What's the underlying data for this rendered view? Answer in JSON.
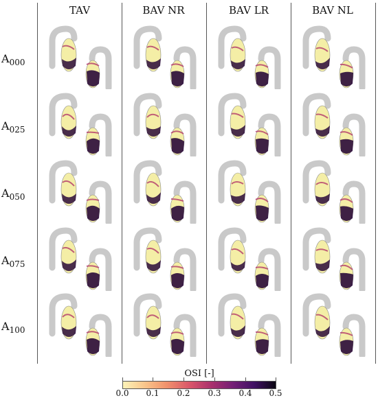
{
  "columns": [
    {
      "label": "TAV"
    },
    {
      "label": "BAV NR"
    },
    {
      "label": "BAV LR"
    },
    {
      "label": "BAV NL"
    }
  ],
  "rows": [
    {
      "prefix": "A",
      "sub": "000"
    },
    {
      "prefix": "A",
      "sub": "025"
    },
    {
      "prefix": "A",
      "sub": "050"
    },
    {
      "prefix": "A",
      "sub": "075"
    },
    {
      "prefix": "A",
      "sub": "100"
    }
  ],
  "colorbar": {
    "title": "OSI [-]",
    "ticks": [
      "0.0",
      "0.1",
      "0.2",
      "0.3",
      "0.4",
      "0.5"
    ]
  },
  "colors": {
    "aorta_gray": "#c9c9c9",
    "low_osi": "#f4eea6",
    "high_osi": "#2a0a3a",
    "mid_osi": "#b33a6b"
  }
}
